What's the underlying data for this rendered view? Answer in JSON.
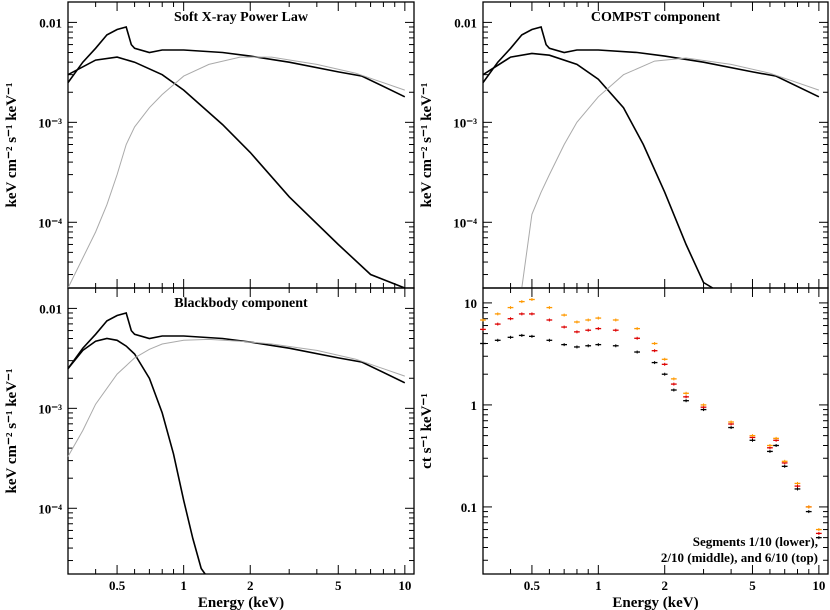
{
  "chart_data": [
    {
      "type": "line",
      "panel": "top-left",
      "title": "Soft X-ray Power Law",
      "xlabel": "",
      "ylabel": "keV cm⁻² s⁻¹ keV⁻¹",
      "xscale": "log",
      "yscale": "log",
      "xlim": [
        0.3,
        11
      ],
      "ylim": [
        2.2e-05,
        0.016
      ],
      "xticks": [
        0.5,
        1,
        2,
        5,
        10
      ],
      "yticks": [
        {
          "value": 0.0001,
          "label": "10⁻⁴"
        },
        {
          "value": 0.001,
          "label": "10⁻³"
        },
        {
          "value": 0.01,
          "label": "0.01"
        }
      ],
      "show_xtick_labels": false,
      "series": [
        {
          "role": "total",
          "color": "#000000",
          "x": [
            0.3,
            0.35,
            0.4,
            0.45,
            0.5,
            0.55,
            0.58,
            0.6,
            0.7,
            0.8,
            1.0,
            1.5,
            2.0,
            3.0,
            5.0,
            6.4,
            10.0
          ],
          "y": [
            0.0025,
            0.004,
            0.0055,
            0.0075,
            0.0085,
            0.009,
            0.006,
            0.0055,
            0.005,
            0.0053,
            0.0053,
            0.005,
            0.0046,
            0.004,
            0.0032,
            0.0029,
            0.0018
          ]
        },
        {
          "role": "component",
          "color": "#000000",
          "x": [
            0.3,
            0.4,
            0.5,
            0.6,
            0.8,
            1.0,
            1.5,
            2.0,
            3.0,
            5.0,
            7.0,
            10.0
          ],
          "y": [
            0.003,
            0.0042,
            0.0045,
            0.004,
            0.003,
            0.0021,
            0.00095,
            0.0005,
            0.00018,
            6e-05,
            3e-05,
            2.1e-05
          ]
        },
        {
          "role": "component",
          "color": "#aaaaaa",
          "x": [
            0.3,
            0.4,
            0.45,
            0.5,
            0.55,
            0.6,
            0.7,
            0.8,
            1.0,
            1.3,
            1.8,
            2.5,
            4.0,
            6.0,
            10.0
          ],
          "y": [
            2.2e-05,
            8e-05,
            0.00015,
            0.0003,
            0.0006,
            0.0009,
            0.0014,
            0.0019,
            0.0029,
            0.0038,
            0.0045,
            0.0045,
            0.0038,
            0.0031,
            0.0021
          ]
        }
      ]
    },
    {
      "type": "line",
      "panel": "top-right",
      "title": "COMPST component",
      "xlabel": "",
      "ylabel": "keV cm⁻² s⁻¹ keV⁻¹",
      "xscale": "log",
      "yscale": "log",
      "xlim": [
        0.3,
        11
      ],
      "ylim": [
        2.2e-05,
        0.016
      ],
      "xticks": [
        0.5,
        1,
        2,
        5,
        10
      ],
      "yticks": [
        {
          "value": 0.0001,
          "label": "10⁻⁴"
        },
        {
          "value": 0.001,
          "label": "10⁻³"
        },
        {
          "value": 0.01,
          "label": "0.01"
        }
      ],
      "show_xtick_labels": false,
      "series": [
        {
          "role": "total",
          "color": "#000000",
          "x": [
            0.3,
            0.35,
            0.4,
            0.45,
            0.5,
            0.55,
            0.58,
            0.6,
            0.7,
            0.8,
            1.0,
            1.5,
            2.0,
            3.0,
            5.0,
            6.4,
            10.0
          ],
          "y": [
            0.0025,
            0.004,
            0.0055,
            0.0075,
            0.0085,
            0.009,
            0.006,
            0.0055,
            0.005,
            0.0053,
            0.0053,
            0.005,
            0.0046,
            0.004,
            0.0032,
            0.0029,
            0.0018
          ]
        },
        {
          "role": "component",
          "color": "#000000",
          "x": [
            0.3,
            0.4,
            0.5,
            0.6,
            0.8,
            1.0,
            1.3,
            1.6,
            2.0,
            2.5,
            3.0,
            3.3
          ],
          "y": [
            0.003,
            0.0045,
            0.0049,
            0.0047,
            0.0038,
            0.0027,
            0.0014,
            0.0006,
            0.0002,
            6e-05,
            2.5e-05,
            2.1e-05
          ]
        },
        {
          "role": "component",
          "color": "#aaaaaa",
          "x": [
            0.45,
            0.5,
            0.55,
            0.6,
            0.7,
            0.8,
            1.0,
            1.3,
            1.8,
            2.5,
            4.0,
            6.0,
            10.0
          ],
          "y": [
            2.2e-05,
            0.00012,
            0.0002,
            0.0003,
            0.0006,
            0.001,
            0.0018,
            0.003,
            0.0041,
            0.0044,
            0.0038,
            0.0031,
            0.0021
          ]
        }
      ]
    },
    {
      "type": "line",
      "panel": "bottom-left",
      "title": "Blackbody component",
      "xlabel": "Energy (keV)",
      "ylabel": "keV cm⁻² s⁻¹ keV⁻¹",
      "xscale": "log",
      "yscale": "log",
      "xlim": [
        0.3,
        11
      ],
      "ylim": [
        2.2e-05,
        0.016
      ],
      "xticks": [
        0.5,
        1,
        2,
        5,
        10
      ],
      "yticks": [
        {
          "value": 0.0001,
          "label": "10⁻⁴"
        },
        {
          "value": 0.001,
          "label": "10⁻³"
        },
        {
          "value": 0.01,
          "label": "0.01"
        }
      ],
      "show_xtick_labels": true,
      "series": [
        {
          "role": "total",
          "color": "#000000",
          "x": [
            0.3,
            0.35,
            0.4,
            0.45,
            0.5,
            0.55,
            0.58,
            0.6,
            0.7,
            0.8,
            1.0,
            1.5,
            2.0,
            3.0,
            5.0,
            6.4,
            10.0
          ],
          "y": [
            0.0025,
            0.004,
            0.0055,
            0.0075,
            0.0085,
            0.009,
            0.006,
            0.0055,
            0.005,
            0.0053,
            0.0053,
            0.005,
            0.0046,
            0.004,
            0.0032,
            0.0029,
            0.0018
          ]
        },
        {
          "role": "component",
          "color": "#000000",
          "x": [
            0.3,
            0.35,
            0.4,
            0.45,
            0.5,
            0.55,
            0.6,
            0.7,
            0.8,
            0.9,
            1.0,
            1.1,
            1.2,
            1.25
          ],
          "y": [
            0.0025,
            0.0038,
            0.0047,
            0.005,
            0.0048,
            0.0042,
            0.0035,
            0.002,
            0.0009,
            0.00035,
            0.00012,
            5e-05,
            2.5e-05,
            2.1e-05
          ]
        },
        {
          "role": "component",
          "color": "#aaaaaa",
          "x": [
            0.3,
            0.35,
            0.4,
            0.5,
            0.6,
            0.7,
            0.8,
            1.0,
            1.3,
            1.8,
            2.5,
            4.0,
            6.0,
            10.0
          ],
          "y": [
            0.00033,
            0.0006,
            0.0011,
            0.0022,
            0.0032,
            0.0039,
            0.0044,
            0.0048,
            0.0049,
            0.0047,
            0.0044,
            0.0038,
            0.0031,
            0.0021
          ]
        }
      ]
    },
    {
      "type": "scatter",
      "panel": "bottom-right",
      "title": "",
      "xlabel": "Energy (keV)",
      "ylabel": "ct s⁻¹ keV⁻¹",
      "xscale": "log",
      "yscale": "log",
      "xlim": [
        0.3,
        11
      ],
      "ylim": [
        0.022,
        14
      ],
      "xticks": [
        0.5,
        1,
        2,
        5,
        10
      ],
      "yticks": [
        {
          "value": 0.1,
          "label": "0.1"
        },
        {
          "value": 1,
          "label": "1"
        },
        {
          "value": 10,
          "label": "10"
        }
      ],
      "show_xtick_labels": true,
      "annotation": [
        "Segments 1/10 (lower),",
        "2/10 (middle), and 6/10 (top)"
      ],
      "x": [
        0.3,
        0.35,
        0.4,
        0.45,
        0.5,
        0.6,
        0.7,
        0.8,
        0.9,
        1.0,
        1.2,
        1.5,
        1.8,
        2.0,
        2.2,
        2.5,
        3.0,
        4.0,
        5.0,
        6.0,
        6.4,
        7.0,
        8.0,
        9.0,
        10.0
      ],
      "series": [
        {
          "name": "Segments 1/10 (lower)",
          "color": "#000000",
          "values": [
            4.0,
            4.3,
            4.6,
            4.8,
            4.7,
            4.3,
            3.9,
            3.7,
            3.8,
            3.9,
            3.8,
            3.3,
            2.6,
            2.0,
            1.4,
            1.1,
            0.9,
            0.6,
            0.45,
            0.35,
            0.4,
            0.25,
            0.15,
            0.09,
            0.05
          ]
        },
        {
          "name": "2/10 (middle)",
          "color": "#dd0000",
          "values": [
            5.5,
            6.2,
            7.0,
            7.8,
            7.8,
            6.8,
            5.8,
            5.2,
            5.4,
            5.6,
            5.4,
            4.5,
            3.4,
            2.5,
            1.6,
            1.2,
            0.95,
            0.65,
            0.48,
            0.38,
            0.45,
            0.27,
            0.16,
            0.1,
            0.055
          ]
        },
        {
          "name": "6/10 (top)",
          "color": "#ff9900",
          "values": [
            6.8,
            7.8,
            9.0,
            10.3,
            10.8,
            9.0,
            7.6,
            6.5,
            6.8,
            7.1,
            6.8,
            5.6,
            4.0,
            2.8,
            1.8,
            1.3,
            1.0,
            0.68,
            0.5,
            0.4,
            0.47,
            0.28,
            0.17,
            0.1,
            0.06
          ]
        }
      ]
    }
  ]
}
